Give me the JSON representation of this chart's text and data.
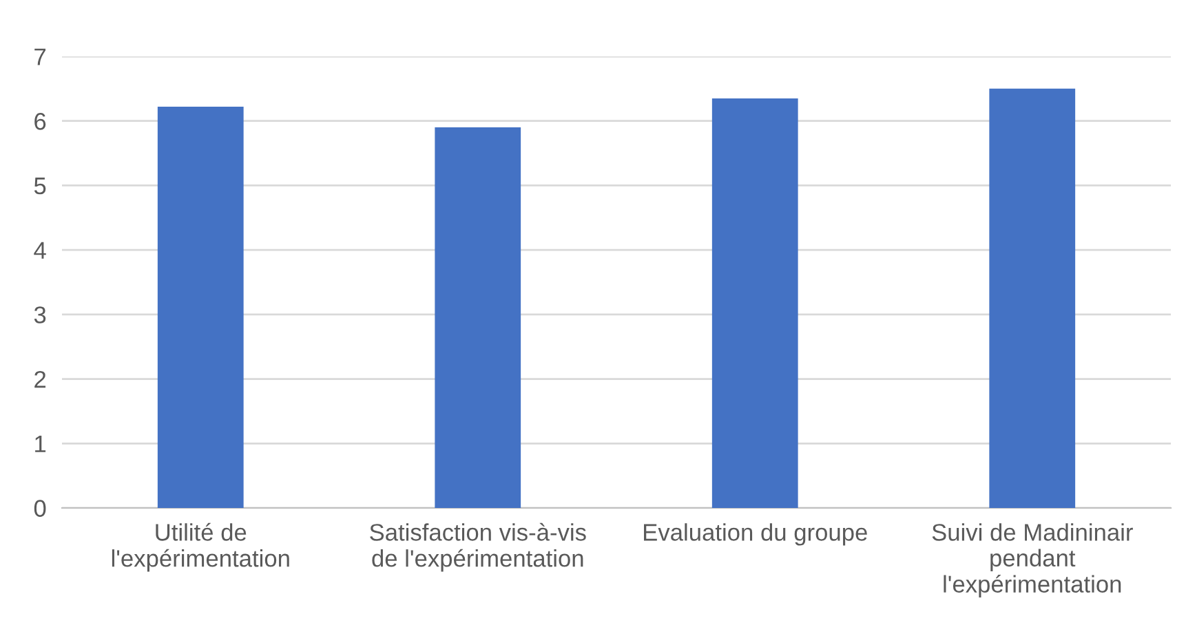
{
  "chart_data": {
    "type": "bar",
    "categories": [
      "Utilité de\nl'expérimentation",
      "Satisfaction vis-à-vis\nde l'expérimentation",
      "Evaluation du groupe",
      "Suivi de Madininair\npendant\nl'expérimentation"
    ],
    "values": [
      6.22,
      5.9,
      6.35,
      6.5
    ],
    "color": "#4472c4",
    "ylim": [
      0,
      7
    ],
    "yticks": [
      0,
      1,
      2,
      3,
      4,
      5,
      6,
      7
    ],
    "grid": "y",
    "legend": false
  }
}
